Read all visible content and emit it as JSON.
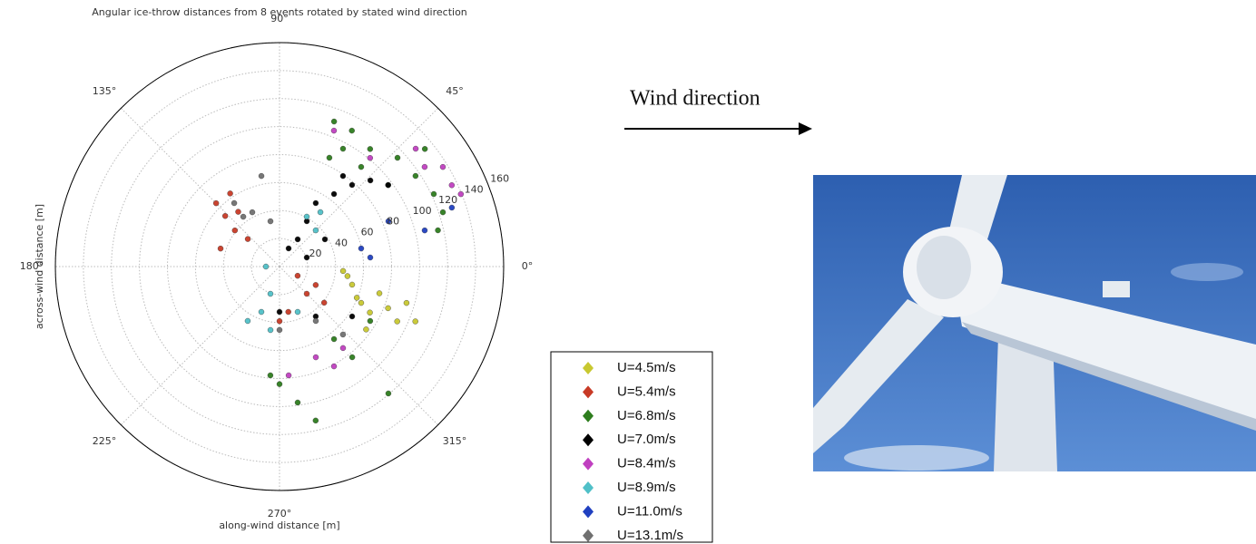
{
  "chart_data": {
    "type": "polar_scatter",
    "title": "Angular ice-throw distances from 8 events rotated by stated wind direction",
    "xlabel": "along-wind distance [m]",
    "ylabel": "across-wind distance [m]",
    "annotation": "Wind direction",
    "rlim": [
      0,
      160
    ],
    "rticks": [
      20,
      40,
      60,
      80,
      100,
      120,
      140,
      160
    ],
    "thetaticks": [
      {
        "value": 0,
        "label": "0°"
      },
      {
        "value": 45,
        "label": "45°"
      },
      {
        "value": 90,
        "label": "90°"
      },
      {
        "value": 135,
        "label": "135°"
      },
      {
        "value": 180,
        "label": "180°"
      },
      {
        "value": 225,
        "label": "225°"
      },
      {
        "value": 270,
        "label": "270°"
      },
      {
        "value": 315,
        "label": "315°"
      }
    ],
    "grid": true,
    "series": [
      {
        "name": "U=4.5m/s",
        "color": "#c8c830",
        "r": [
          45.5,
          53.4,
          63.8,
          72.4,
          83,
          92.7,
          104.6,
          59.5,
          73.8,
          49,
          76.4,
          94.3
        ],
        "theta": [
          356,
          346,
          336,
          333,
          339,
          335,
          338,
          338,
          345,
          352,
          324,
          344
        ]
      },
      {
        "name": "U=5.4m/s",
        "color": "#c83a26",
        "r": [
          64,
          53,
          41,
          44,
          49,
          63,
          30,
          14.5,
          27.5,
          33,
          29,
          39,
          41
        ],
        "theta": [
          135,
          137,
          141,
          163,
          127,
          124,
          139,
          333,
          315,
          281,
          333,
          270,
          321
        ]
      },
      {
        "name": "U=6.8m/s",
        "color": "#2e7d1e",
        "r": [
          110.7,
          110,
          106,
          114.6,
          116.7,
          121.7,
          122.9,
          97,
          92,
          95.6,
          133.5,
          116,
          85.5,
          84,
          98,
          113,
          119.4,
          83,
          64.8,
          78,
          75.5
        ],
        "theta": [
          69.4,
          62,
          52.4,
          42.7,
          33.7,
          25.2,
          18.4,
          36.9,
          50.7,
          61.7,
          39,
          12.9,
          65.4,
          270,
          277.6,
          283.2,
          310.6,
          308.7,
          306.9,
          265.2,
          329
        ]
      },
      {
        "name": "U=7.0m/s",
        "color": "#000000",
        "r": [
          37.8,
          52.2,
          64.8,
          78,
          89.4,
          23.4,
          37.8,
          32.4,
          44,
          62.9,
          20.5,
          14.5,
          79,
          97
        ],
        "theta": [
          59,
          60.3,
          53.1,
          48.4,
          43.5,
          56.3,
          31,
          270,
          306,
          325.5,
          18.4,
          63.4,
          55,
          36.9
        ]
      },
      {
        "name": "U=8.4m/s",
        "color": "#c040c0",
        "r": [
          104.6,
          101,
          128.6,
          136,
          139.4,
          125.7,
          136.6,
          69.8,
          73.8,
          78,
          81.2
        ],
        "theta": [
          68.2,
          50.2,
          40.9,
          25.3,
          21.8,
          34.5,
          31.4,
          291.8,
          307.9,
          274.8,
          298.6
        ]
      },
      {
        "name": "U=8.9m/s",
        "color": "#50c0c8",
        "r": [
          40.6,
          36.6,
          20.5,
          34.9,
          45,
          45.8,
          34.9,
          9.7,
          48.6
        ],
        "theta": [
          61.4,
          45,
          251.6,
          248.2,
          239.7,
          261.9,
          291.8,
          180,
          53.1
        ]
      },
      {
        "name": "U=11.0m/s",
        "color": "#2040c0",
        "r": [
          59.7,
          65.1,
          84.2,
          130,
          106.8
        ],
        "theta": [
          12.5,
          5.7,
          22.6,
          18.9,
          14
        ]
      },
      {
        "name": "U=13.1m/s",
        "color": "#707070",
        "r": [
          66,
          43.4,
          33,
          55.7,
          45.3,
          46.7,
          66.4,
          44
        ],
        "theta": [
          101.3,
          116.6,
          101.3,
          125.5,
          270,
          303.7,
          313,
          126
        ]
      }
    ]
  }
}
